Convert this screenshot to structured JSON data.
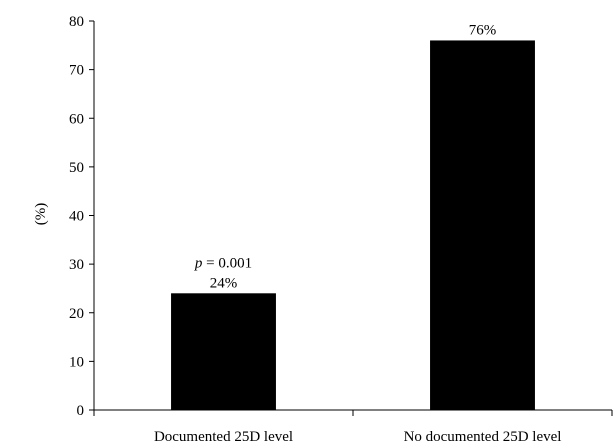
{
  "chart_data": {
    "type": "bar",
    "categories": [
      "Documented 25D level",
      "No documented 25D level"
    ],
    "values": [
      24,
      76
    ],
    "data_labels": [
      "24%",
      "76%"
    ],
    "title": "",
    "xlabel": "",
    "ylabel": "(%)",
    "ylim": [
      0,
      80
    ],
    "yticks": [
      0,
      10,
      20,
      30,
      40,
      50,
      60,
      70,
      80
    ],
    "bar_color": "#000000",
    "grid": false,
    "annotation": {
      "category_index": 0,
      "symbol": "p",
      "text": " = 0.001"
    }
  }
}
